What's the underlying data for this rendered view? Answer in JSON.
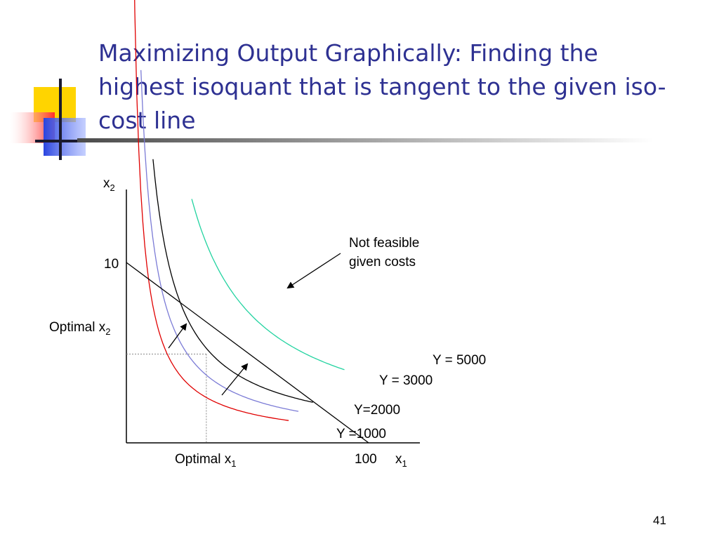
{
  "slide": {
    "title": "Maximizing Output Graphically: Finding the highest isoquant that is tangent to the given iso-cost line",
    "page_number": "41"
  },
  "colors": {
    "title": "#2e3192",
    "y1000": "#e00000",
    "y2000": "#7b7bd6",
    "y3000": "#000000",
    "y5000": "#22d3a0",
    "cost_line": "#000000",
    "guides": "#888888"
  },
  "chart_data": {
    "type": "line",
    "xlabel": "x",
    "xlabel_sub": "1",
    "ylabel": "x",
    "ylabel_sub": "2",
    "x_ticks": [
      {
        "value": 100,
        "label": "100"
      }
    ],
    "y_ticks": [
      {
        "value": 10,
        "label": "10"
      }
    ],
    "xlim": [
      0,
      112
    ],
    "ylim": [
      0,
      14
    ],
    "grid": false,
    "legend": "none",
    "optimal": {
      "x": 33,
      "y": 4.92,
      "x_label": "Optimal x",
      "x_label_sub": "1",
      "y_label": "Optimal x",
      "y_label_sub": "2"
    },
    "iso_cost_line": {
      "x": [
        0,
        100
      ],
      "y": [
        10,
        0
      ]
    },
    "isoquants": [
      {
        "name": "Y =1000",
        "color": "#e00000",
        "k": 83,
        "x_range": [
          1,
          67
        ]
      },
      {
        "name": "Y=2000",
        "color": "#7b7bd6",
        "k": 124,
        "x_range": [
          6,
          71
        ]
      },
      {
        "name": "Y = 3000",
        "color": "#000000",
        "k": 173,
        "x_range": [
          11,
          77
        ]
      },
      {
        "name": "Y = 5000",
        "color": "#22d3a0",
        "k": 365,
        "x_range": [
          27,
          90
        ]
      }
    ],
    "annotations": {
      "infeasible_line1": "Not feasible",
      "infeasible_line2": "given costs"
    }
  }
}
